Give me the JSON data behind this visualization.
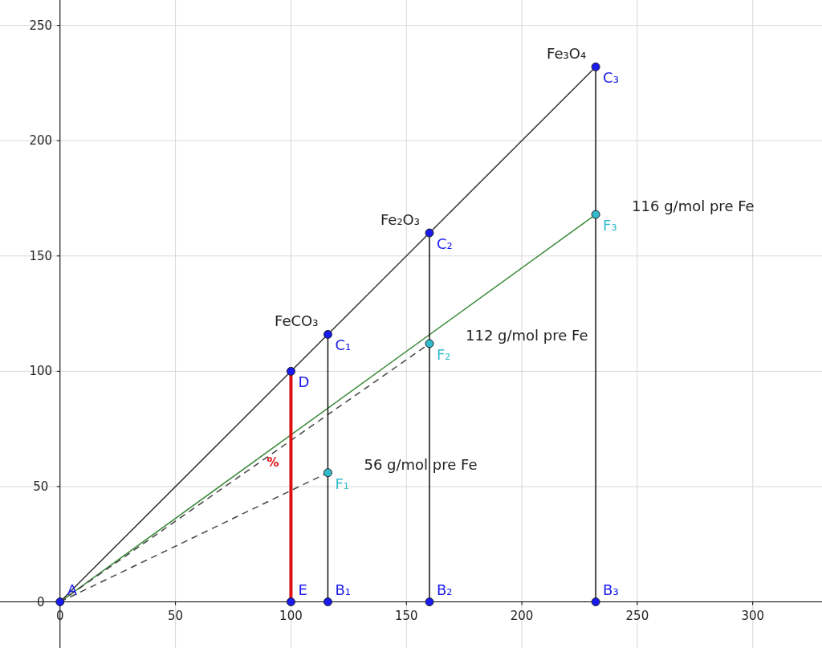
{
  "chart_data": {
    "type": "line",
    "xlim": [
      -26,
      330
    ],
    "ylim": [
      -20,
      261
    ],
    "xticks": [
      0,
      50,
      100,
      150,
      200,
      250,
      300
    ],
    "yticks": [
      0,
      50,
      100,
      150,
      200,
      250
    ],
    "grid": true,
    "series": [
      {
        "color": "#333333",
        "x": [
          0,
          232
        ],
        "values": [
          0,
          232
        ]
      },
      {
        "color": "#3a8a3a",
        "x": [
          0,
          232
        ],
        "values": [
          0,
          168
        ]
      },
      {
        "color": "#444444",
        "x": [
          0,
          116
        ],
        "values": [
          0,
          56
        ],
        "line_style": "dashed"
      },
      {
        "color": "#444444",
        "x": [
          0,
          160
        ],
        "values": [
          0,
          112
        ],
        "line_style": "dashed"
      },
      {
        "color": "#111111",
        "x": [
          116,
          116
        ],
        "values": [
          0,
          116
        ]
      },
      {
        "color": "#111111",
        "x": [
          160,
          160
        ],
        "values": [
          0,
          160
        ]
      },
      {
        "color": "#111111",
        "x": [
          232,
          232
        ],
        "values": [
          0,
          232
        ]
      },
      {
        "name": "%",
        "color": "#dd1111",
        "x": [
          100,
          100
        ],
        "values": [
          0,
          100
        ]
      },
      {
        "type": "scatter",
        "name": "A",
        "color": "#1a1aee",
        "x": [
          0
        ],
        "values": [
          0
        ]
      },
      {
        "type": "scatter",
        "name": "B₁",
        "color": "#1a1aee",
        "x": [
          116
        ],
        "values": [
          0
        ]
      },
      {
        "type": "scatter",
        "name": "B₂",
        "color": "#1a1aee",
        "x": [
          160
        ],
        "values": [
          0
        ]
      },
      {
        "type": "scatter",
        "name": "B₃",
        "color": "#1a1aee",
        "x": [
          232
        ],
        "values": [
          0
        ]
      },
      {
        "type": "scatter",
        "name": "C₁",
        "color": "#1a1aee",
        "x": [
          116
        ],
        "values": [
          116
        ]
      },
      {
        "type": "scatter",
        "name": "C₂",
        "color": "#1a1aee",
        "x": [
          160
        ],
        "values": [
          160
        ]
      },
      {
        "type": "scatter",
        "name": "C₃",
        "color": "#1a1aee",
        "x": [
          232
        ],
        "values": [
          232
        ]
      },
      {
        "type": "scatter",
        "name": "D",
        "color": "#1a1aee",
        "x": [
          100
        ],
        "values": [
          100
        ]
      },
      {
        "type": "scatter",
        "name": "E",
        "color": "#1a1aee",
        "x": [
          100
        ],
        "values": [
          0
        ]
      },
      {
        "type": "scatter",
        "name": "F₁",
        "color": "#33bbcc",
        "x": [
          116
        ],
        "values": [
          56
        ]
      },
      {
        "type": "scatter",
        "name": "F₂",
        "color": "#33bbcc",
        "x": [
          160
        ],
        "values": [
          112
        ]
      },
      {
        "type": "scatter",
        "name": "F₃",
        "color": "#33bbcc",
        "x": [
          232
        ],
        "values": [
          168
        ]
      }
    ],
    "annotations": [
      {
        "text": "Fe₃O₄",
        "x": 232,
        "y": 232
      },
      {
        "text": "Fe₂O₃",
        "x": 160,
        "y": 160
      },
      {
        "text": "FeCO₃",
        "x": 116,
        "y": 116
      },
      {
        "text": "116 g/mol pre Fe",
        "x": 232,
        "y": 168
      },
      {
        "text": "112 g/mol  pre Fe",
        "x": 160,
        "y": 112
      },
      {
        "text": "56 g/mol pre Fe",
        "x": 116,
        "y": 56
      }
    ]
  }
}
